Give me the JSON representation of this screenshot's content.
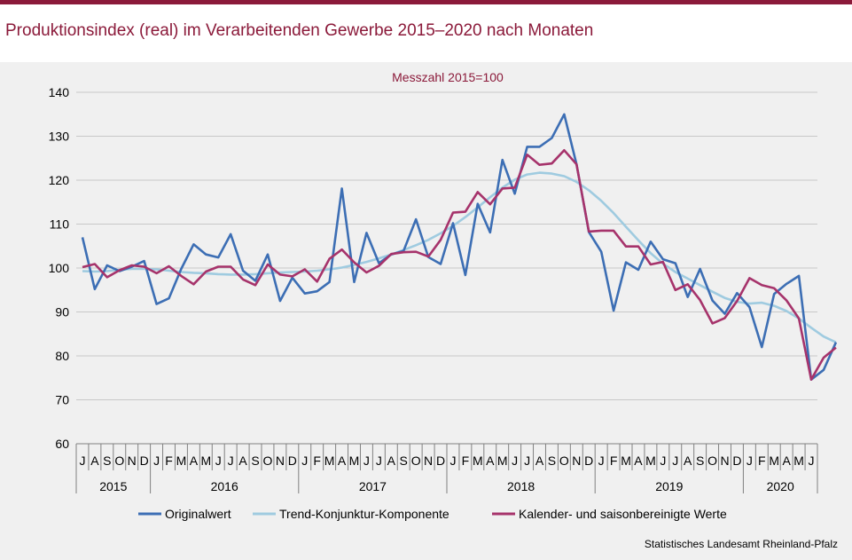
{
  "header": {
    "title": "Produktionsindex (real) im Verarbeitenden Gewerbe 2015–2020 nach Monaten",
    "source": "Statistisches Landesamt Rheinland-Pfalz"
  },
  "chart_data": {
    "type": "line",
    "subtitle": "Messzahl 2015=100",
    "ylim": [
      60,
      140
    ],
    "yticks": [
      60,
      70,
      80,
      90,
      100,
      110,
      120,
      130,
      140
    ],
    "grid": true,
    "legend_position": "bottom",
    "month_labels": [
      "J",
      "A",
      "S",
      "O",
      "N",
      "D",
      "J",
      "F",
      "M",
      "A",
      "M",
      "J",
      "J",
      "A",
      "S",
      "O",
      "N",
      "D",
      "J",
      "F",
      "M",
      "A",
      "M",
      "J",
      "J",
      "A",
      "S",
      "O",
      "N",
      "D",
      "J",
      "F",
      "M",
      "A",
      "M",
      "J",
      "J",
      "A",
      "S",
      "O",
      "N",
      "D",
      "J",
      "F",
      "M",
      "A",
      "M",
      "J",
      "J",
      "A",
      "S",
      "O",
      "N",
      "D",
      "J",
      "F",
      "M",
      "A",
      "M",
      "J"
    ],
    "years": [
      {
        "label": "2015",
        "months": 6
      },
      {
        "label": "2016",
        "months": 12
      },
      {
        "label": "2017",
        "months": 12
      },
      {
        "label": "2018",
        "months": 12
      },
      {
        "label": "2019",
        "months": 12
      },
      {
        "label": "2020",
        "months": 6
      }
    ],
    "series": [
      {
        "name": "Originalwert",
        "color": "#3c6eb4",
        "values": [
          107,
          95.2,
          100.6,
          99.3,
          100.3,
          101.6,
          91.8,
          93.1,
          99.8,
          105.4,
          103.1,
          102.4,
          107.7,
          99.4,
          97.1,
          103.1,
          92.5,
          97.8,
          94.2,
          94.7,
          96.8,
          118.1,
          96.8,
          108,
          101.1,
          103.1,
          103.9,
          111.1,
          102.5,
          100.9,
          110.2,
          98.4,
          114.6,
          108.1,
          124.6,
          116.9,
          127.6,
          127.6,
          129.6,
          135,
          123.6,
          108.2,
          103.7,
          90.3,
          101.3,
          99.6,
          106,
          102,
          101.1,
          93.4,
          99.8,
          92.6,
          89.6,
          94.3,
          91.1,
          82,
          94.1,
          96.4,
          98.2,
          74.6,
          76.8,
          83.1
        ]
      },
      {
        "name": "Trend-Konjunktur-Komponente",
        "color": "#9fcbe0",
        "values": [
          99.3,
          99.2,
          99.3,
          99.6,
          99.8,
          99.8,
          99.7,
          99.4,
          99.1,
          98.9,
          98.8,
          98.6,
          98.5,
          98.5,
          98.6,
          98.8,
          99,
          99.1,
          99.2,
          99.4,
          99.7,
          100.1,
          100.7,
          101.4,
          102.2,
          103.1,
          104.1,
          105.2,
          106.4,
          107.9,
          109.6,
          111.6,
          113.8,
          116.1,
          118.3,
          120.1,
          121.3,
          121.7,
          121.5,
          120.9,
          119.6,
          117.7,
          115.3,
          112.5,
          109.4,
          106.3,
          103.4,
          101,
          99.1,
          97.6,
          96.1,
          94.6,
          93.2,
          92.3,
          91.9,
          92.1,
          91.4,
          90.2,
          88.5,
          86.4,
          84.4,
          83.1
        ]
      },
      {
        "name": "Kalender- und saisonbereinigte Werte",
        "color": "#a6336b",
        "values": [
          100.2,
          100.9,
          97.9,
          99.5,
          100.6,
          100.3,
          98.8,
          100.4,
          98.2,
          96.3,
          99.2,
          100.3,
          100.3,
          97.4,
          96.1,
          100.8,
          98.5,
          98.1,
          99.7,
          96.9,
          102.1,
          104.2,
          101.3,
          99,
          100.5,
          103.2,
          103.6,
          103.7,
          102.6,
          106.4,
          112.6,
          112.8,
          117.3,
          114.5,
          118.1,
          118.3,
          125.8,
          123.5,
          123.8,
          126.8,
          123.6,
          108.3,
          108.5,
          108.5,
          104.9,
          104.9,
          100.8,
          101.4,
          95,
          96.3,
          92.7,
          87.4,
          88.6,
          92.5,
          97.7,
          96.1,
          95.4,
          92.6,
          88.5,
          74.6,
          79.6,
          81.9
        ]
      }
    ]
  }
}
